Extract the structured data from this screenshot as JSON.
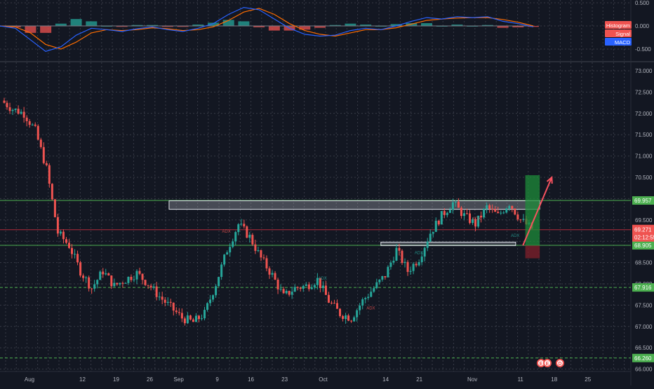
{
  "colors": {
    "background": "#131722",
    "grid": "#5d606b",
    "axis_text": "#b2b5be",
    "bull": "#26a69a",
    "bear": "#ef5350",
    "macd_line": "#2962ff",
    "signal_line": "#ff6d00",
    "green_line": "#4caf50",
    "red_line": "#f23645",
    "zone": "#d1d4dc",
    "arrow": "#f7525f",
    "target_box": "#1e8c3a",
    "stop_box": "#7a1f2b",
    "price_label_bg": "#ef5350",
    "green_label_bg": "#4caf50"
  },
  "chart_data": [
    {
      "type": "bar",
      "panel": "MACD",
      "legend": [
        {
          "name": "Histogram",
          "color": "#ef5350"
        },
        {
          "name": "Signal",
          "color": "#ef5350"
        },
        {
          "name": "MACD",
          "color": "#2962ff"
        }
      ],
      "y_ticks": [
        "0.500",
        "0.000",
        "-0.500"
      ],
      "ylim": [
        -0.65,
        0.62
      ],
      "macd": [
        0.0,
        -0.05,
        -0.3,
        -0.55,
        -0.45,
        -0.2,
        -0.05,
        -0.08,
        -0.12,
        -0.06,
        -0.02,
        -0.08,
        -0.12,
        -0.05,
        0.05,
        0.25,
        0.4,
        0.35,
        0.15,
        -0.05,
        -0.18,
        -0.22,
        -0.2,
        -0.1,
        -0.05,
        -0.08,
        0.0,
        0.1,
        0.18,
        0.15,
        0.2,
        0.18,
        0.2,
        0.1,
        0.05,
        -0.02
      ],
      "signal": [
        0.0,
        -0.02,
        -0.15,
        -0.4,
        -0.5,
        -0.35,
        -0.15,
        -0.08,
        -0.1,
        -0.08,
        -0.04,
        -0.06,
        -0.1,
        -0.08,
        -0.02,
        0.12,
        0.3,
        0.38,
        0.25,
        0.05,
        -0.1,
        -0.18,
        -0.22,
        -0.15,
        -0.08,
        -0.08,
        -0.04,
        0.04,
        0.12,
        0.15,
        0.17,
        0.18,
        0.18,
        0.14,
        0.08,
        0.0
      ],
      "histogram": [
        0.0,
        -0.03,
        -0.15,
        -0.15,
        0.05,
        0.15,
        0.1,
        0.0,
        -0.02,
        0.02,
        0.02,
        -0.02,
        -0.02,
        0.03,
        0.07,
        0.13,
        0.1,
        -0.03,
        -0.1,
        -0.1,
        -0.08,
        -0.04,
        0.02,
        0.05,
        0.03,
        0.0,
        0.04,
        0.06,
        0.06,
        0.0,
        0.03,
        0.0,
        0.02,
        -0.04,
        -0.03,
        -0.02
      ]
    },
    {
      "type": "candlestick",
      "panel": "price",
      "y_ticks": [
        "73.000",
        "72.500",
        "72.000",
        "71.500",
        "71.000",
        "70.500",
        "70.000",
        "69.500",
        "69.000",
        "68.500",
        "68.000",
        "67.500",
        "67.000",
        "66.500",
        "66.000"
      ],
      "ylim": [
        65.75,
        73.1
      ],
      "x_ticks": [
        "Aug",
        "12",
        "19",
        "26",
        "Sep",
        "9",
        "16",
        "23",
        "Oct",
        "14",
        "21",
        "Nov",
        "11",
        "18",
        "25"
      ],
      "x_tick_days": [
        0,
        11,
        18,
        25,
        31,
        39,
        46,
        53,
        61,
        74,
        81,
        92,
        102,
        109,
        116
      ],
      "closes": [
        72.3,
        72.1,
        72.0,
        71.6,
        70.7,
        69.2,
        68.9,
        68.3,
        67.9,
        68.3,
        67.95,
        68.1,
        68.25,
        68.0,
        67.7,
        67.45,
        67.2,
        67.1,
        67.3,
        68.0,
        68.8,
        69.4,
        69.1,
        68.6,
        68.2,
        67.7,
        67.9,
        67.95,
        68.1,
        67.6,
        67.3,
        67.2,
        67.6,
        67.9,
        68.2,
        68.8,
        68.3,
        68.6,
        69.2,
        69.6,
        69.9,
        69.6,
        69.4,
        69.8,
        69.6,
        69.9,
        69.5,
        69.3
      ],
      "current_price": "69.271",
      "countdown": "02:12:55",
      "levels": [
        {
          "label": "69.957",
          "value": 69.957,
          "style": "solid",
          "color": "green"
        },
        {
          "label": "68.905",
          "value": 68.905,
          "style": "solid",
          "color": "green"
        },
        {
          "label": "67.916",
          "value": 67.916,
          "style": "dashed",
          "color": "green"
        },
        {
          "label": "66.260",
          "value": 66.26,
          "style": "dashed",
          "color": "green"
        }
      ],
      "resistance_zone": {
        "x_days": [
          29,
          106
        ],
        "y": [
          69.75,
          69.95
        ]
      },
      "support_zone": {
        "x_days": [
          73,
          101
        ],
        "y": [
          68.91,
          68.98
        ]
      },
      "projection": {
        "target_box": {
          "x_days": [
            103,
            106
          ],
          "y": [
            68.9,
            70.55
          ]
        },
        "stop_box": {
          "x_days": [
            103,
            106
          ],
          "y": [
            68.6,
            68.9
          ]
        },
        "arrow": {
          "from_day": 102.5,
          "from_y": 68.9,
          "to_day": 108.5,
          "to_y": 70.5
        }
      },
      "markers": [
        "ADX",
        "ADX",
        "ADX",
        "ADX",
        "ADX",
        "ADX"
      ],
      "event_icons": [
        "E",
        "E",
        "D"
      ]
    }
  ]
}
